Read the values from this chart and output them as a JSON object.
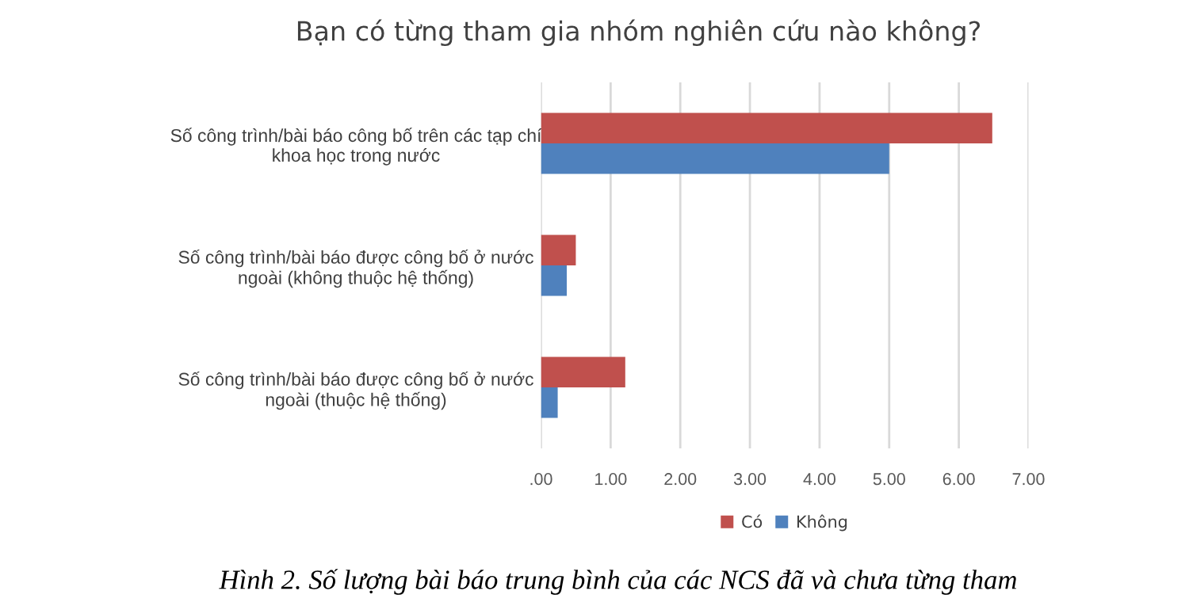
{
  "chart_data": {
    "type": "bar",
    "orientation": "horizontal",
    "title": "Bạn có từng tham gia nhóm nghiên cứu nào không?",
    "categories": [
      "Số công trình/bài báo công bố trên các tạp chí\nkhoa học trong nước",
      "Số công trình/bài báo được công bố ở nước\nngoài (không thuộc hệ thống)",
      "Số công trình/bài báo được công bố ở nước\nngoài (thuộc hệ thống)"
    ],
    "series": [
      {
        "name": "Có",
        "color": "#c0504d",
        "values": [
          6.48,
          0.5,
          1.21
        ]
      },
      {
        "name": "Không",
        "color": "#4f81bd",
        "values": [
          5.0,
          0.37,
          0.24
        ]
      }
    ],
    "xlim": [
      0,
      7
    ],
    "xticks": [
      {
        "value": 0,
        "label": ".00"
      },
      {
        "value": 1,
        "label": "1.00"
      },
      {
        "value": 2,
        "label": "2.00"
      },
      {
        "value": 3,
        "label": "3.00"
      },
      {
        "value": 4,
        "label": "4.00"
      },
      {
        "value": 5,
        "label": "5.00"
      },
      {
        "value": 6,
        "label": "6.00"
      },
      {
        "value": 7,
        "label": "7.00"
      }
    ],
    "grid": "x",
    "legend": "bottom",
    "annotations": [
      "Hình 2. Số lượng bài báo trung bình của các NCS đã và chưa từng tham"
    ]
  }
}
